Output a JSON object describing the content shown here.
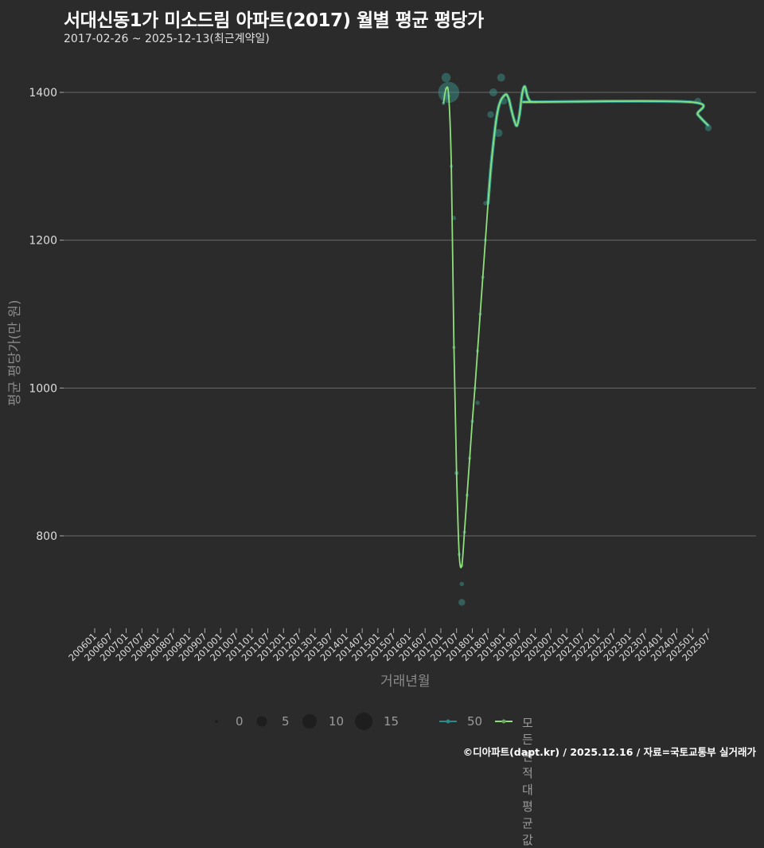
{
  "header": {
    "title": "서대신동1가 미소드림 아파트(2017) 월별 평균 평당가",
    "subtitle": "2017-02-26 ~ 2025-12-13(최근계약일)"
  },
  "footer": {
    "credit": "©디아파트(dapt.kr) / 2025.12.16 / 자료=국토교통부 실거래가"
  },
  "legend": {
    "size_values": [
      "0",
      "5",
      "10",
      "15"
    ],
    "series": [
      {
        "label": "50",
        "color": "#2a8a8a"
      },
      {
        "label": "모든 면적대 평균값",
        "color": "#8ee07a"
      }
    ]
  },
  "colors": {
    "background": "#2b2b2b",
    "grid": "#6a6a6a",
    "line_area50": "#2e9a92",
    "line_avg": "#8ee07a",
    "point": "#3a8a84"
  },
  "chart_data": {
    "type": "line",
    "title": "서대신동1가 미소드림 아파트(2017) 월별 평균 평당가",
    "subtitle": "2017-02-26 ~ 2025-12-13(최근계약일)",
    "xlabel": "거래년월",
    "ylabel": "평균 평당가(만 원)",
    "ylim": [
      690,
      1440
    ],
    "yticks": [
      800,
      1000,
      1200,
      1400
    ],
    "grid": true,
    "legend_position": "bottom",
    "x_tick_labels": [
      "200601",
      "200607",
      "200701",
      "200707",
      "200801",
      "200807",
      "200901",
      "200907",
      "201001",
      "201007",
      "201101",
      "201107",
      "201201",
      "201207",
      "201301",
      "201307",
      "201401",
      "201407",
      "201501",
      "201507",
      "201601",
      "201607",
      "201701",
      "201707",
      "201801",
      "201807",
      "201901",
      "201907",
      "202001",
      "202007",
      "202101",
      "202107",
      "202201",
      "202207",
      "202301",
      "202307",
      "202401",
      "202407",
      "202501",
      "202507"
    ],
    "series": [
      {
        "name": "모든 면적대 평균값",
        "points": [
          [
            "201702",
            1385
          ],
          [
            "201703",
            1405
          ],
          [
            "201704",
            1395
          ],
          [
            "201705",
            1300
          ],
          [
            "201706",
            1055
          ],
          [
            "201707",
            885
          ],
          [
            "201708",
            775
          ],
          [
            "201709",
            760
          ],
          [
            "201710",
            805
          ],
          [
            "201711",
            855
          ],
          [
            "201712",
            905
          ],
          [
            "201801",
            955
          ],
          [
            "201802",
            1000
          ],
          [
            "201803",
            1050
          ],
          [
            "201804",
            1100
          ],
          [
            "201805",
            1150
          ],
          [
            "201806",
            1200
          ],
          [
            "201807",
            1250
          ],
          [
            "201808",
            1295
          ],
          [
            "201809",
            1330
          ],
          [
            "201810",
            1360
          ],
          [
            "201811",
            1380
          ],
          [
            "201812",
            1390
          ],
          [
            "201901",
            1395
          ],
          [
            "201902",
            1397
          ],
          [
            "201903",
            1390
          ],
          [
            "201904",
            1375
          ],
          [
            "201905",
            1362
          ],
          [
            "201906",
            1355
          ],
          [
            "201907",
            1370
          ],
          [
            "201908",
            1398
          ],
          [
            "201909",
            1408
          ],
          [
            "201910",
            1395
          ],
          [
            "201911",
            1388
          ],
          [
            "201912",
            1387
          ],
          [
            "202001",
            1387
          ],
          [
            "202412",
            1387
          ],
          [
            "202503",
            1370
          ],
          [
            "202507",
            1355
          ]
        ]
      },
      {
        "name": "50",
        "points": [
          [
            "201703",
            1420,
            5
          ],
          [
            "201703",
            1395,
            4
          ],
          [
            "201704",
            1400,
            15
          ],
          [
            "201706",
            1230,
            1
          ],
          [
            "201707",
            885,
            1
          ],
          [
            "201709",
            735,
            1
          ],
          [
            "201709",
            710,
            3
          ],
          [
            "201803",
            980,
            1
          ],
          [
            "201806",
            1250,
            1
          ],
          [
            "201808",
            1370,
            3
          ],
          [
            "201809",
            1400,
            4
          ],
          [
            "201811",
            1345,
            4
          ],
          [
            "201812",
            1420,
            4
          ],
          [
            "201901",
            1388,
            3
          ],
          [
            "202503",
            1388,
            3
          ],
          [
            "202507",
            1352,
            3
          ]
        ]
      }
    ]
  },
  "axes": {
    "y_ticks": [
      "1400",
      "1200",
      "1000",
      "800"
    ],
    "x_ticks": [
      "200601",
      "200607",
      "200701",
      "200707",
      "200801",
      "200807",
      "200901",
      "200907",
      "201001",
      "201007",
      "201101",
      "201107",
      "201201",
      "201207",
      "201301",
      "201307",
      "201401",
      "201407",
      "201501",
      "201507",
      "201601",
      "201607",
      "201701",
      "201707",
      "201801",
      "201807",
      "201901",
      "201907",
      "202001",
      "202007",
      "202101",
      "202107",
      "202201",
      "202207",
      "202301",
      "202307",
      "202401",
      "202407",
      "202501",
      "202507"
    ],
    "xlabel": "거래년월",
    "ylabel": "평균 평당가(만 원)"
  }
}
